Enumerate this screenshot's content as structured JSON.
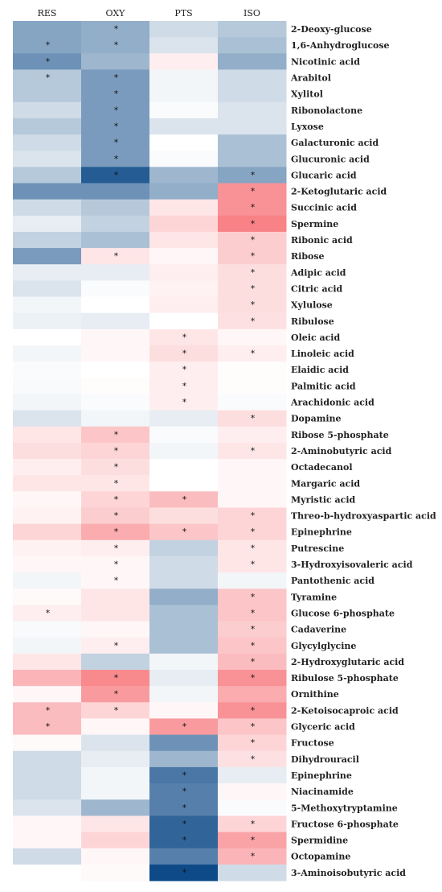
{
  "chart_data": {
    "type": "heatmap",
    "columns": [
      "RES",
      "OXY",
      "PTS",
      "ISO"
    ],
    "rows": [
      "2-Deoxy-glucose",
      "1,6-Anhydroglucose",
      "Nicotinic acid",
      "Arabitol",
      "Xylitol",
      "Ribonolactone",
      "Lyxose",
      "Galacturonic acid",
      "Glucuronic acid",
      "Glucaric acid",
      "2-Ketoglutaric acid",
      "Succinic acid",
      "Spermine",
      "Ribonic acid",
      "Ribose",
      "Adipic acid",
      "Citric acid",
      "Xylulose",
      "Ribulose",
      "Oleic acid",
      "Linoleic acid",
      "Elaidic acid",
      "Palmitic acid",
      "Arachidonic acid",
      "Dopamine",
      "Ribose 5-phosphate",
      "2-Aminobutyric acid",
      "Octadecanol",
      "Margaric acid",
      "Myristic acid",
      "Threo-b-hydroxyaspartic acid",
      "Epinephrine",
      "Putrescine",
      "3-Hydroxyisovaleric acid",
      "Pantothenic acid",
      "Tyramine",
      "Glucose 6-phosphate",
      "Cadaverine",
      "Glycylglycine",
      "2-Hydroxyglutaric acid",
      "Ribulose 5-phosphate",
      "Ornithine",
      "2-Ketoisocaproic acid",
      "Glyceric acid",
      "Fructose",
      "Dihydrouracil",
      "Epinephrine",
      "Niacinamide",
      "5-Methoxytryptamine",
      "Fructose 6-phosphate",
      "Spermidine",
      "Octopamine",
      "3-Aminoisobutyric acid"
    ],
    "values": [
      [
        -0.5,
        -0.45,
        -0.2,
        -0.3
      ],
      [
        -0.5,
        -0.45,
        -0.15,
        -0.35
      ],
      [
        -0.6,
        -0.4,
        0.1,
        -0.45
      ],
      [
        -0.3,
        -0.55,
        -0.05,
        -0.2
      ],
      [
        -0.3,
        -0.55,
        -0.05,
        -0.2
      ],
      [
        -0.2,
        -0.55,
        -0.02,
        -0.15
      ],
      [
        -0.3,
        -0.55,
        -0.15,
        -0.15
      ],
      [
        -0.2,
        -0.55,
        0.0,
        -0.35
      ],
      [
        -0.15,
        -0.55,
        -0.02,
        -0.35
      ],
      [
        -0.3,
        -0.9,
        -0.4,
        -0.5
      ],
      [
        -0.6,
        -0.6,
        -0.45,
        0.65
      ],
      [
        -0.2,
        -0.3,
        0.15,
        0.65
      ],
      [
        -0.1,
        -0.25,
        0.25,
        0.75
      ],
      [
        -0.25,
        -0.35,
        0.15,
        0.3
      ],
      [
        -0.55,
        0.15,
        0.05,
        0.3
      ],
      [
        -0.1,
        -0.1,
        0.1,
        0.2
      ],
      [
        -0.15,
        -0.02,
        0.08,
        0.2
      ],
      [
        -0.05,
        0.0,
        0.1,
        0.2
      ],
      [
        -0.08,
        -0.1,
        0.0,
        0.18
      ],
      [
        0.0,
        0.05,
        0.15,
        0.05
      ],
      [
        -0.05,
        0.05,
        0.2,
        0.1
      ],
      [
        -0.02,
        0.0,
        0.1,
        0.02
      ],
      [
        -0.03,
        0.02,
        0.1,
        0.02
      ],
      [
        -0.05,
        -0.02,
        0.1,
        -0.02
      ],
      [
        -0.15,
        -0.05,
        -0.1,
        0.2
      ],
      [
        0.15,
        0.35,
        -0.02,
        0.1
      ],
      [
        0.2,
        0.25,
        -0.05,
        0.15
      ],
      [
        0.1,
        0.2,
        0.0,
        0.05
      ],
      [
        0.15,
        0.15,
        0.0,
        0.05
      ],
      [
        0.05,
        0.25,
        0.4,
        0.05
      ],
      [
        0.08,
        0.3,
        0.2,
        0.25
      ],
      [
        0.25,
        0.5,
        0.35,
        0.25
      ],
      [
        0.08,
        0.1,
        -0.25,
        0.15
      ],
      [
        0.05,
        0.05,
        -0.2,
        0.15
      ],
      [
        -0.05,
        0.05,
        -0.2,
        -0.05
      ],
      [
        0.03,
        0.15,
        -0.45,
        0.35
      ],
      [
        0.1,
        0.15,
        -0.35,
        0.35
      ],
      [
        -0.03,
        0.05,
        -0.35,
        0.3
      ],
      [
        -0.05,
        0.1,
        -0.35,
        0.35
      ],
      [
        0.15,
        -0.25,
        -0.05,
        0.4
      ],
      [
        0.45,
        0.7,
        -0.1,
        0.65
      ],
      [
        0.05,
        0.6,
        -0.05,
        0.5
      ],
      [
        0.4,
        0.25,
        0.05,
        0.65
      ],
      [
        0.4,
        0.05,
        0.6,
        0.35
      ],
      [
        0.03,
        -0.15,
        -0.6,
        0.25
      ],
      [
        -0.2,
        -0.1,
        -0.4,
        0.18
      ],
      [
        -0.2,
        -0.05,
        -0.75,
        -0.1
      ],
      [
        -0.2,
        -0.05,
        -0.7,
        0.05
      ],
      [
        -0.15,
        -0.4,
        -0.7,
        -0.02
      ],
      [
        0.05,
        0.15,
        -0.85,
        0.25
      ],
      [
        0.05,
        0.25,
        -0.85,
        0.55
      ],
      [
        -0.2,
        0.05,
        -0.7,
        0.45
      ],
      [
        0.0,
        0.03,
        -1.0,
        -0.2
      ]
    ],
    "significant": [
      [
        0,
        1,
        1,
        1,
        0,
        0,
        0,
        0,
        0,
        0,
        0,
        0,
        0,
        0,
        0,
        0,
        0,
        0,
        0,
        0,
        0,
        0,
        0,
        0,
        0,
        0,
        0,
        0,
        0,
        0,
        0,
        0,
        0,
        0,
        0,
        0,
        1,
        0,
        0,
        0,
        0,
        0,
        1,
        1,
        0,
        0,
        0,
        0,
        0,
        0,
        0,
        0,
        0
      ],
      [
        1,
        1,
        0,
        1,
        1,
        1,
        1,
        1,
        1,
        1,
        0,
        0,
        0,
        0,
        1,
        0,
        0,
        0,
        0,
        0,
        0,
        0,
        0,
        0,
        0,
        1,
        1,
        1,
        1,
        1,
        1,
        1,
        1,
        1,
        1,
        0,
        0,
        0,
        1,
        0,
        1,
        1,
        1,
        0,
        0,
        0,
        0,
        0,
        0,
        0,
        0,
        0,
        0
      ],
      [
        0,
        0,
        0,
        0,
        0,
        0,
        0,
        0,
        0,
        0,
        0,
        0,
        0,
        0,
        0,
        0,
        0,
        0,
        0,
        1,
        1,
        1,
        1,
        1,
        0,
        0,
        0,
        0,
        0,
        1,
        0,
        1,
        0,
        0,
        0,
        0,
        0,
        0,
        0,
        0,
        0,
        0,
        0,
        1,
        0,
        0,
        1,
        1,
        1,
        1,
        1,
        0,
        1
      ],
      [
        0,
        0,
        0,
        0,
        0,
        0,
        0,
        0,
        0,
        1,
        1,
        1,
        1,
        1,
        1,
        1,
        1,
        1,
        1,
        0,
        1,
        0,
        0,
        0,
        1,
        0,
        1,
        0,
        0,
        0,
        1,
        1,
        1,
        1,
        0,
        1,
        1,
        1,
        1,
        1,
        1,
        0,
        1,
        1,
        1,
        1,
        0,
        0,
        0,
        1,
        1,
        1,
        0
      ]
    ],
    "significance_marker": "*",
    "colors": {
      "negative": "#0d4a87",
      "neutral": "#ffffff",
      "positive": "#f5585e"
    }
  }
}
